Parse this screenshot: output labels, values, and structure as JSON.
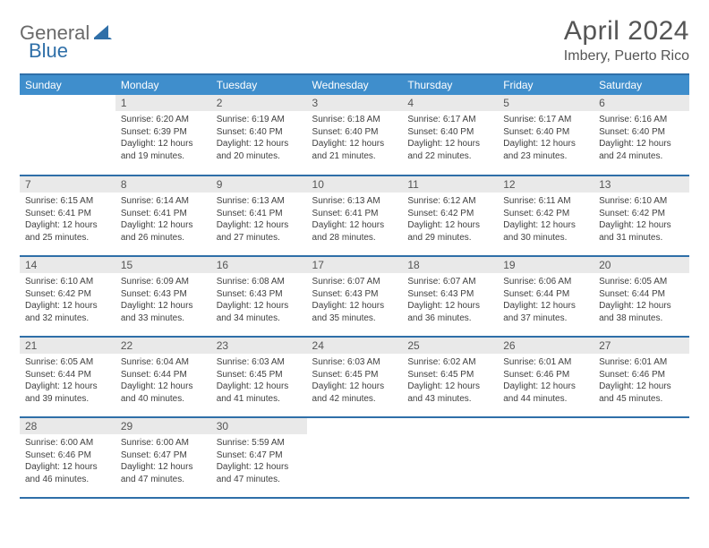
{
  "brand": {
    "general": "General",
    "blue": "Blue"
  },
  "title": "April 2024",
  "location": "Imbery, Puerto Rico",
  "colors": {
    "header_bg": "#3f8ecc",
    "border": "#2f6fa8",
    "daybar": "#e9e9e9",
    "text": "#404040"
  },
  "weekdays": [
    "Sunday",
    "Monday",
    "Tuesday",
    "Wednesday",
    "Thursday",
    "Friday",
    "Saturday"
  ],
  "weeks": [
    [
      null,
      {
        "n": "1",
        "lines": [
          "Sunrise: 6:20 AM",
          "Sunset: 6:39 PM",
          "Daylight: 12 hours",
          "and 19 minutes."
        ]
      },
      {
        "n": "2",
        "lines": [
          "Sunrise: 6:19 AM",
          "Sunset: 6:40 PM",
          "Daylight: 12 hours",
          "and 20 minutes."
        ]
      },
      {
        "n": "3",
        "lines": [
          "Sunrise: 6:18 AM",
          "Sunset: 6:40 PM",
          "Daylight: 12 hours",
          "and 21 minutes."
        ]
      },
      {
        "n": "4",
        "lines": [
          "Sunrise: 6:17 AM",
          "Sunset: 6:40 PM",
          "Daylight: 12 hours",
          "and 22 minutes."
        ]
      },
      {
        "n": "5",
        "lines": [
          "Sunrise: 6:17 AM",
          "Sunset: 6:40 PM",
          "Daylight: 12 hours",
          "and 23 minutes."
        ]
      },
      {
        "n": "6",
        "lines": [
          "Sunrise: 6:16 AM",
          "Sunset: 6:40 PM",
          "Daylight: 12 hours",
          "and 24 minutes."
        ]
      }
    ],
    [
      {
        "n": "7",
        "lines": [
          "Sunrise: 6:15 AM",
          "Sunset: 6:41 PM",
          "Daylight: 12 hours",
          "and 25 minutes."
        ]
      },
      {
        "n": "8",
        "lines": [
          "Sunrise: 6:14 AM",
          "Sunset: 6:41 PM",
          "Daylight: 12 hours",
          "and 26 minutes."
        ]
      },
      {
        "n": "9",
        "lines": [
          "Sunrise: 6:13 AM",
          "Sunset: 6:41 PM",
          "Daylight: 12 hours",
          "and 27 minutes."
        ]
      },
      {
        "n": "10",
        "lines": [
          "Sunrise: 6:13 AM",
          "Sunset: 6:41 PM",
          "Daylight: 12 hours",
          "and 28 minutes."
        ]
      },
      {
        "n": "11",
        "lines": [
          "Sunrise: 6:12 AM",
          "Sunset: 6:42 PM",
          "Daylight: 12 hours",
          "and 29 minutes."
        ]
      },
      {
        "n": "12",
        "lines": [
          "Sunrise: 6:11 AM",
          "Sunset: 6:42 PM",
          "Daylight: 12 hours",
          "and 30 minutes."
        ]
      },
      {
        "n": "13",
        "lines": [
          "Sunrise: 6:10 AM",
          "Sunset: 6:42 PM",
          "Daylight: 12 hours",
          "and 31 minutes."
        ]
      }
    ],
    [
      {
        "n": "14",
        "lines": [
          "Sunrise: 6:10 AM",
          "Sunset: 6:42 PM",
          "Daylight: 12 hours",
          "and 32 minutes."
        ]
      },
      {
        "n": "15",
        "lines": [
          "Sunrise: 6:09 AM",
          "Sunset: 6:43 PM",
          "Daylight: 12 hours",
          "and 33 minutes."
        ]
      },
      {
        "n": "16",
        "lines": [
          "Sunrise: 6:08 AM",
          "Sunset: 6:43 PM",
          "Daylight: 12 hours",
          "and 34 minutes."
        ]
      },
      {
        "n": "17",
        "lines": [
          "Sunrise: 6:07 AM",
          "Sunset: 6:43 PM",
          "Daylight: 12 hours",
          "and 35 minutes."
        ]
      },
      {
        "n": "18",
        "lines": [
          "Sunrise: 6:07 AM",
          "Sunset: 6:43 PM",
          "Daylight: 12 hours",
          "and 36 minutes."
        ]
      },
      {
        "n": "19",
        "lines": [
          "Sunrise: 6:06 AM",
          "Sunset: 6:44 PM",
          "Daylight: 12 hours",
          "and 37 minutes."
        ]
      },
      {
        "n": "20",
        "lines": [
          "Sunrise: 6:05 AM",
          "Sunset: 6:44 PM",
          "Daylight: 12 hours",
          "and 38 minutes."
        ]
      }
    ],
    [
      {
        "n": "21",
        "lines": [
          "Sunrise: 6:05 AM",
          "Sunset: 6:44 PM",
          "Daylight: 12 hours",
          "and 39 minutes."
        ]
      },
      {
        "n": "22",
        "lines": [
          "Sunrise: 6:04 AM",
          "Sunset: 6:44 PM",
          "Daylight: 12 hours",
          "and 40 minutes."
        ]
      },
      {
        "n": "23",
        "lines": [
          "Sunrise: 6:03 AM",
          "Sunset: 6:45 PM",
          "Daylight: 12 hours",
          "and 41 minutes."
        ]
      },
      {
        "n": "24",
        "lines": [
          "Sunrise: 6:03 AM",
          "Sunset: 6:45 PM",
          "Daylight: 12 hours",
          "and 42 minutes."
        ]
      },
      {
        "n": "25",
        "lines": [
          "Sunrise: 6:02 AM",
          "Sunset: 6:45 PM",
          "Daylight: 12 hours",
          "and 43 minutes."
        ]
      },
      {
        "n": "26",
        "lines": [
          "Sunrise: 6:01 AM",
          "Sunset: 6:46 PM",
          "Daylight: 12 hours",
          "and 44 minutes."
        ]
      },
      {
        "n": "27",
        "lines": [
          "Sunrise: 6:01 AM",
          "Sunset: 6:46 PM",
          "Daylight: 12 hours",
          "and 45 minutes."
        ]
      }
    ],
    [
      {
        "n": "28",
        "lines": [
          "Sunrise: 6:00 AM",
          "Sunset: 6:46 PM",
          "Daylight: 12 hours",
          "and 46 minutes."
        ]
      },
      {
        "n": "29",
        "lines": [
          "Sunrise: 6:00 AM",
          "Sunset: 6:47 PM",
          "Daylight: 12 hours",
          "and 47 minutes."
        ]
      },
      {
        "n": "30",
        "lines": [
          "Sunrise: 5:59 AM",
          "Sunset: 6:47 PM",
          "Daylight: 12 hours",
          "and 47 minutes."
        ]
      },
      null,
      null,
      null,
      null
    ]
  ]
}
